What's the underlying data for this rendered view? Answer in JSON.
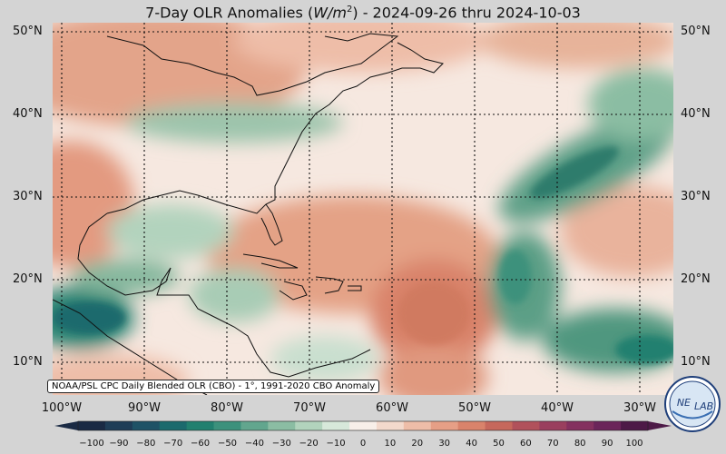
{
  "title": {
    "prefix": "7-Day OLR Anomalies (",
    "unit_base": "W/m",
    "unit_exp": "2",
    "suffix": ") - 2024-09-26 thru 2024-10-03"
  },
  "lat_labels": [
    "50°N",
    "40°N",
    "30°N",
    "20°N",
    "10°N"
  ],
  "lon_labels": [
    "100°W",
    "90°W",
    "80°W",
    "70°W",
    "60°W",
    "50°W",
    "40°W",
    "30°W"
  ],
  "source_note": "NOAA/PSL CPC Daily Blended OLR (CBO) - 1°, 1991-2020 CBO Anomaly",
  "colorbar": {
    "ticks": [
      "−100",
      "−90",
      "−80",
      "−70",
      "−60",
      "−50",
      "−40",
      "−30",
      "−20",
      "−10",
      "0",
      "10",
      "20",
      "30",
      "40",
      "50",
      "60",
      "70",
      "80",
      "90",
      "100"
    ],
    "colors": [
      "#1a2a44",
      "#1f3d57",
      "#1f5266",
      "#1c6a6d",
      "#22806f",
      "#3c917c",
      "#62a68e",
      "#8bbda3",
      "#b2d3bd",
      "#d7e8da",
      "#f8efe9",
      "#f3d9cc",
      "#eebda8",
      "#e69f86",
      "#d9836b",
      "#c6685c",
      "#b1515b",
      "#9a3f5e",
      "#84315f",
      "#6b255a",
      "#4d1a47"
    ]
  },
  "logo": {
    "text_left": "NE",
    "text_right": "LAB"
  }
}
